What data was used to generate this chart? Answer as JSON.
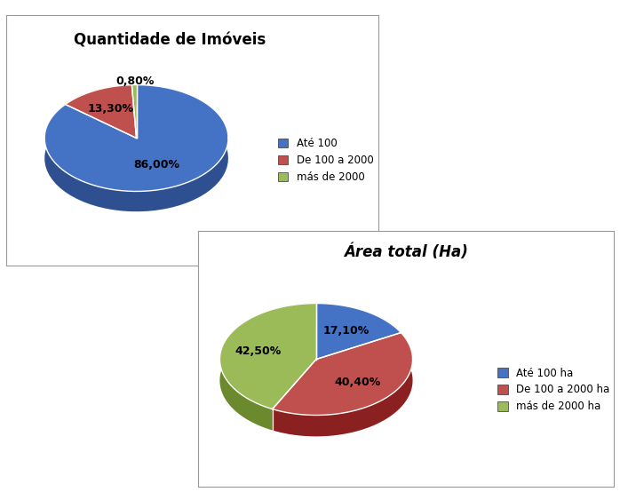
{
  "chart1_title": "Quantidade de Imóveis",
  "chart1_values": [
    86.0,
    13.3,
    0.8
  ],
  "chart1_labels": [
    "86,00%",
    "13,30%",
    "0,80%"
  ],
  "chart1_colors": [
    "#4472C4",
    "#C0504D",
    "#9BBB59"
  ],
  "chart1_colors_dark": [
    "#2E5090",
    "#8B2020",
    "#6B8A2E"
  ],
  "chart1_legend": [
    "Até 100",
    "De 100 a 2000",
    "más de 2000"
  ],
  "chart1_startangle": 90,
  "chart2_title": "Área total (Ha)",
  "chart2_values": [
    17.1,
    40.4,
    42.5
  ],
  "chart2_labels": [
    "17,10%",
    "40,40%",
    "42,50%"
  ],
  "chart2_colors": [
    "#4472C4",
    "#C0504D",
    "#9BBB59"
  ],
  "chart2_colors_dark": [
    "#2E5090",
    "#8B2020",
    "#6B8A2E"
  ],
  "chart2_legend": [
    "Até 100 ha",
    "De 100 a 2000 ha",
    "más de 2000 ha"
  ],
  "chart2_startangle": 90,
  "bg_color": "#FFFFFF",
  "label_fontsize": 9,
  "title_fontsize": 12,
  "legend_fontsize": 8.5
}
